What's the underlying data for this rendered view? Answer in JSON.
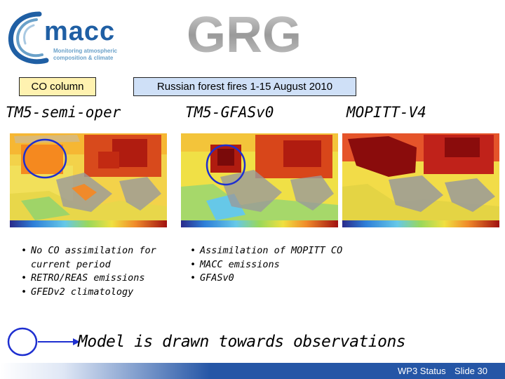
{
  "header": {
    "macc_logo_word": "macc",
    "macc_logo_tagline_1": "Monitoring atmospheric",
    "macc_logo_tagline_2": "composition & climate",
    "grg_logo_word": "GRG"
  },
  "labels": {
    "co_column": "CO column",
    "fires": "Russian forest fires 1-15 August 2010"
  },
  "panels": [
    {
      "title": "TM5-semi-oper"
    },
    {
      "title": "TM5-GFASv0"
    },
    {
      "title": "MOPITT-V4"
    }
  ],
  "notes_left": [
    "No CO assimilation for current period",
    "RETRO/REAS emissions",
    "GFEDv2 climatology"
  ],
  "notes_right": [
    "Assimilation of MOPITT CO",
    "MACC emissions",
    "GFASv0"
  ],
  "legend": {
    "text": "Model is drawn towards observations"
  },
  "footer": {
    "status": "WP3 Status",
    "slide": "Slide 30"
  },
  "colors": {
    "accent_blue": "#2556a6",
    "circle_blue": "#1e2fd0",
    "co_box_bg": "#fff2b0",
    "fires_box_bg": "#cfe0f7"
  }
}
